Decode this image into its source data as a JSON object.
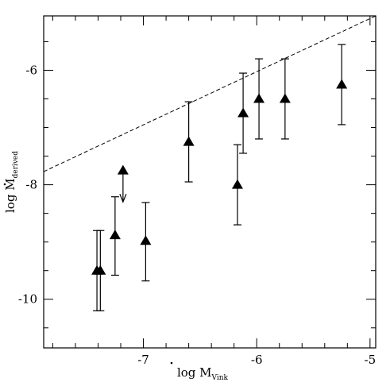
{
  "chart_data": {
    "type": "scatter",
    "xlabel": {
      "base": "log M",
      "subscript": "Vink"
    },
    "ylabel": {
      "base": "log M",
      "subscript": "derived"
    },
    "xlim": [
      -7.88,
      -4.95
    ],
    "ylim": [
      -10.85,
      -5.05
    ],
    "xticks": [
      -7,
      -6,
      -5
    ],
    "yticks": [
      -10,
      -8,
      -6
    ],
    "xtick_labels": [
      "-7",
      "-6",
      "-5"
    ],
    "ytick_labels": [
      "-10",
      "-8",
      "-6"
    ],
    "minor_x_step": 0.2,
    "minor_y_step": 0.5,
    "reference_line": {
      "style": "dashed",
      "points": [
        [
          -7.88,
          -7.77
        ],
        [
          -4.95,
          -5.05
        ]
      ]
    },
    "points": [
      {
        "x": -7.41,
        "y": -9.5,
        "yerr_low": 0.7,
        "yerr_high": 0.7
      },
      {
        "x": -7.38,
        "y": -9.5,
        "yerr_low": 0.7,
        "yerr_high": 0.7
      },
      {
        "x": -7.25,
        "y": -8.88,
        "yerr_low": 0.7,
        "yerr_high": 0.67
      },
      {
        "x": -7.18,
        "y": -7.75,
        "upper_limit": true
      },
      {
        "x": -6.98,
        "y": -8.98,
        "yerr_low": 0.7,
        "yerr_high": 0.67
      },
      {
        "x": -6.6,
        "y": -7.25,
        "yerr_low": 0.7,
        "yerr_high": 0.7
      },
      {
        "x": -6.17,
        "y": -8.0,
        "yerr_low": 0.7,
        "yerr_high": 0.7
      },
      {
        "x": -6.12,
        "y": -6.75,
        "yerr_low": 0.7,
        "yerr_high": 0.7
      },
      {
        "x": -5.98,
        "y": -6.5,
        "yerr_low": 0.7,
        "yerr_high": 0.7
      },
      {
        "x": -5.75,
        "y": -6.5,
        "yerr_low": 0.7,
        "yerr_high": 0.7
      },
      {
        "x": -5.25,
        "y": -6.25,
        "yerr_low": 0.7,
        "yerr_high": 0.7
      }
    ],
    "marker": "filled-triangle",
    "grid": false,
    "legend": "none",
    "colors": {
      "ink": "#000000",
      "background": "#ffffff"
    }
  }
}
